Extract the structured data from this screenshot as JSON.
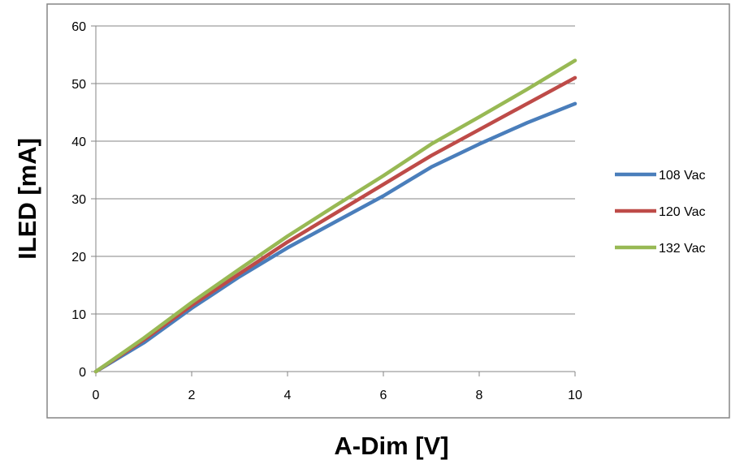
{
  "chart_data": {
    "type": "line",
    "title": "",
    "xlabel": "A-Dim [V]",
    "ylabel": "ILED [mA]",
    "xlim": [
      0,
      10
    ],
    "ylim": [
      0,
      60
    ],
    "xticks": [
      0,
      2,
      4,
      6,
      8,
      10
    ],
    "yticks": [
      0,
      10,
      20,
      30,
      40,
      50,
      60
    ],
    "grid": "horizontal",
    "legend_position": "right",
    "series": [
      {
        "name": "108 Vac",
        "color": "#4a7ebb",
        "x": [
          0,
          1,
          2,
          3,
          4,
          5,
          6,
          7,
          8,
          9,
          10
        ],
        "y": [
          0,
          5,
          11,
          16.5,
          21.5,
          26,
          30.5,
          35.5,
          39.5,
          43.2,
          46.5
        ]
      },
      {
        "name": "120 Vac",
        "color": "#be4b48",
        "x": [
          0,
          1,
          2,
          3,
          4,
          5,
          6,
          7,
          8,
          9,
          10
        ],
        "y": [
          0,
          5.5,
          11.5,
          17,
          22.5,
          27.5,
          32.5,
          37.5,
          42,
          46.5,
          51
        ]
      },
      {
        "name": "132 Vac",
        "color": "#98b954",
        "x": [
          0,
          1,
          2,
          3,
          4,
          5,
          6,
          7,
          8,
          9,
          10
        ],
        "y": [
          0,
          5.8,
          12,
          17.8,
          23.5,
          28.8,
          34,
          39.5,
          44.2,
          49,
          54
        ]
      }
    ]
  }
}
